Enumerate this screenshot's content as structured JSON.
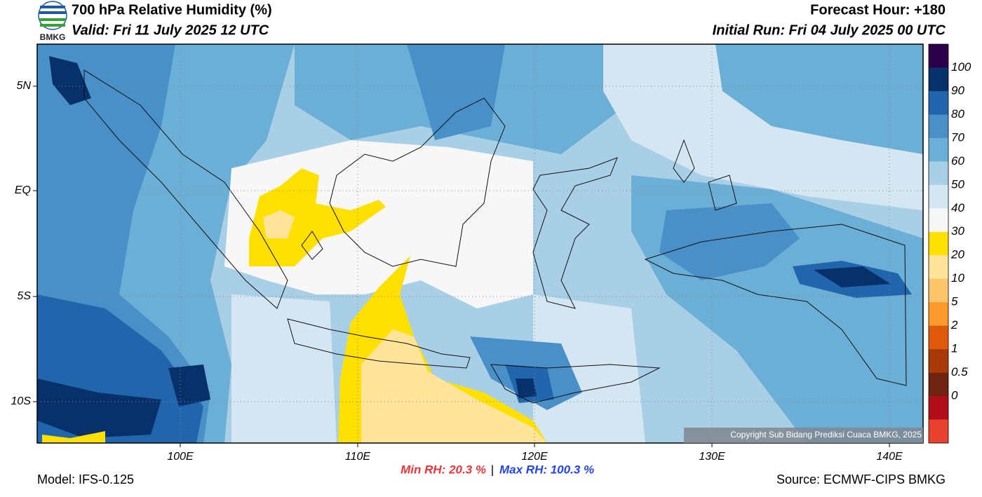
{
  "header": {
    "title": "700 hPa Relative Humidity (%)",
    "valid": "Valid: Fri 11 July 2025 12 UTC",
    "forecast_hour": "Forecast Hour: +180",
    "initial_run": "Initial Run: Fri 04 July 2025 00 UTC",
    "logo_text": "BMKG"
  },
  "map": {
    "lat_labels": [
      "5N",
      "EQ",
      "5S",
      "10S"
    ],
    "lon_labels": [
      "100E",
      "110E",
      "120E",
      "130E",
      "140E"
    ],
    "copyright": "Copyright Sub Bidang Prediksi Cuaca BMKG, 2025"
  },
  "colorbar": {
    "ticks": [
      100,
      90,
      80,
      70,
      60,
      50,
      40,
      30,
      20,
      10,
      5,
      2,
      1,
      0.5,
      0
    ],
    "colors": [
      "#2d004b",
      "#08306b",
      "#2166ac",
      "#4a90c8",
      "#6baed6",
      "#a9cfe6",
      "#d4e6f2",
      "#f7f7f7",
      "#ffe000",
      "#ffe49a",
      "#fec46a",
      "#fd9a2c",
      "#e0590c",
      "#a83a0a",
      "#6e2410",
      "#b10e1a",
      "#e8412d"
    ]
  },
  "footer": {
    "model": "Model: IFS-0.125",
    "min_rh": "Min RH:  20.3 %",
    "separator": "|",
    "max_rh": "Max RH: 100.3 %",
    "source": "Source: ECMWF-CIPS BMKG"
  }
}
